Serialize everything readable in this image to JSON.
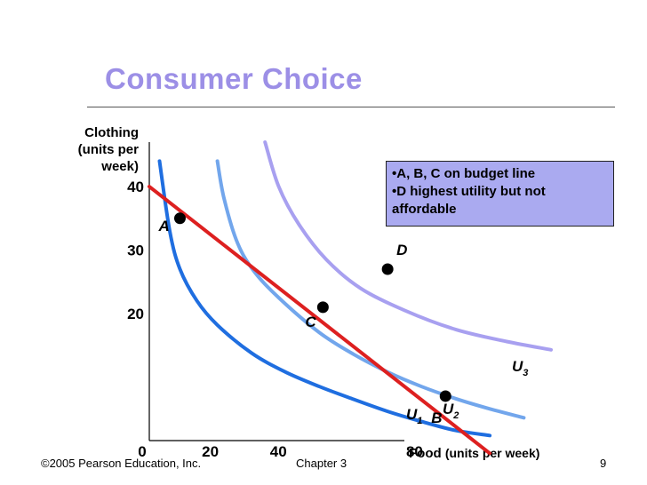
{
  "title": "Consumer Choice",
  "footer": {
    "copyright": "©2005 Pearson Education, Inc.",
    "chapter": "Chapter 3",
    "page": "9"
  },
  "note": {
    "line1": "•A, B, C on budget line",
    "line2": "•D highest utility but not affordable"
  },
  "colors": {
    "title": "#9c8fe6",
    "budget_line": "#dd2020",
    "u1": "#1f6ee0",
    "u2": "#72a6ec",
    "u3": "#a8a0f0",
    "note_bg": "#aaaaf0"
  },
  "chart_data": {
    "type": "line",
    "title": "Consumer Choice",
    "xlabel_main": "Food",
    "xlabel_unit": "(units per week)",
    "ylabel_lines": [
      "Clothing",
      "(units per",
      "week)"
    ],
    "x_ticks": [
      {
        "label": "0",
        "value": 0
      },
      {
        "label": "20",
        "value": 20
      },
      {
        "label": "40",
        "value": 40
      },
      {
        "label": "80",
        "value": 80
      }
    ],
    "y_ticks": [
      {
        "label": "20",
        "value": 20
      },
      {
        "label": "30",
        "value": 30
      },
      {
        "label": "40",
        "value": 40
      }
    ],
    "xlim": [
      0,
      118
    ],
    "ylim": [
      0,
      47
    ],
    "series": [
      {
        "name": "U1",
        "label_main": "U",
        "label_sub": "1",
        "color": "#1f6ee0",
        "points": [
          [
            3,
            44
          ],
          [
            6,
            33
          ],
          [
            9,
            27
          ],
          [
            14,
            22
          ],
          [
            20,
            18.2
          ],
          [
            30,
            13.8
          ],
          [
            40,
            10.8
          ],
          [
            50,
            8.5
          ],
          [
            60,
            6.5
          ],
          [
            70,
            4.6
          ],
          [
            80,
            3
          ],
          [
            90,
            1.6
          ],
          [
            100,
            0.8
          ]
        ]
      },
      {
        "name": "U2",
        "label_main": "U",
        "label_sub": "2",
        "color": "#72a6ec",
        "points": [
          [
            20,
            44
          ],
          [
            22,
            38
          ],
          [
            26,
            31
          ],
          [
            31,
            26.5
          ],
          [
            38,
            22.5
          ],
          [
            50,
            17
          ],
          [
            60,
            13.6
          ],
          [
            70,
            10.8
          ],
          [
            80,
            8.5
          ],
          [
            90,
            6.6
          ],
          [
            100,
            5
          ],
          [
            110,
            3.6
          ]
        ]
      },
      {
        "name": "U3",
        "label_main": "U",
        "label_sub": "3",
        "color": "#a8a0f0",
        "points": [
          [
            34,
            47
          ],
          [
            38,
            40
          ],
          [
            44,
            34
          ],
          [
            52,
            28.5
          ],
          [
            62,
            24
          ],
          [
            75,
            20.5
          ],
          [
            90,
            17.5
          ],
          [
            105,
            15.6
          ],
          [
            118,
            14.3
          ]
        ]
      },
      {
        "name": "Budget line",
        "color": "#dd2020",
        "points": [
          [
            0,
            40
          ],
          [
            100,
            -2
          ]
        ]
      }
    ],
    "points": [
      {
        "label": "A",
        "x": 9,
        "y": 35
      },
      {
        "label": "B",
        "x": 87,
        "y": 7
      },
      {
        "label": "C",
        "x": 51,
        "y": 21
      },
      {
        "label": "D",
        "x": 70,
        "y": 27
      }
    ]
  }
}
